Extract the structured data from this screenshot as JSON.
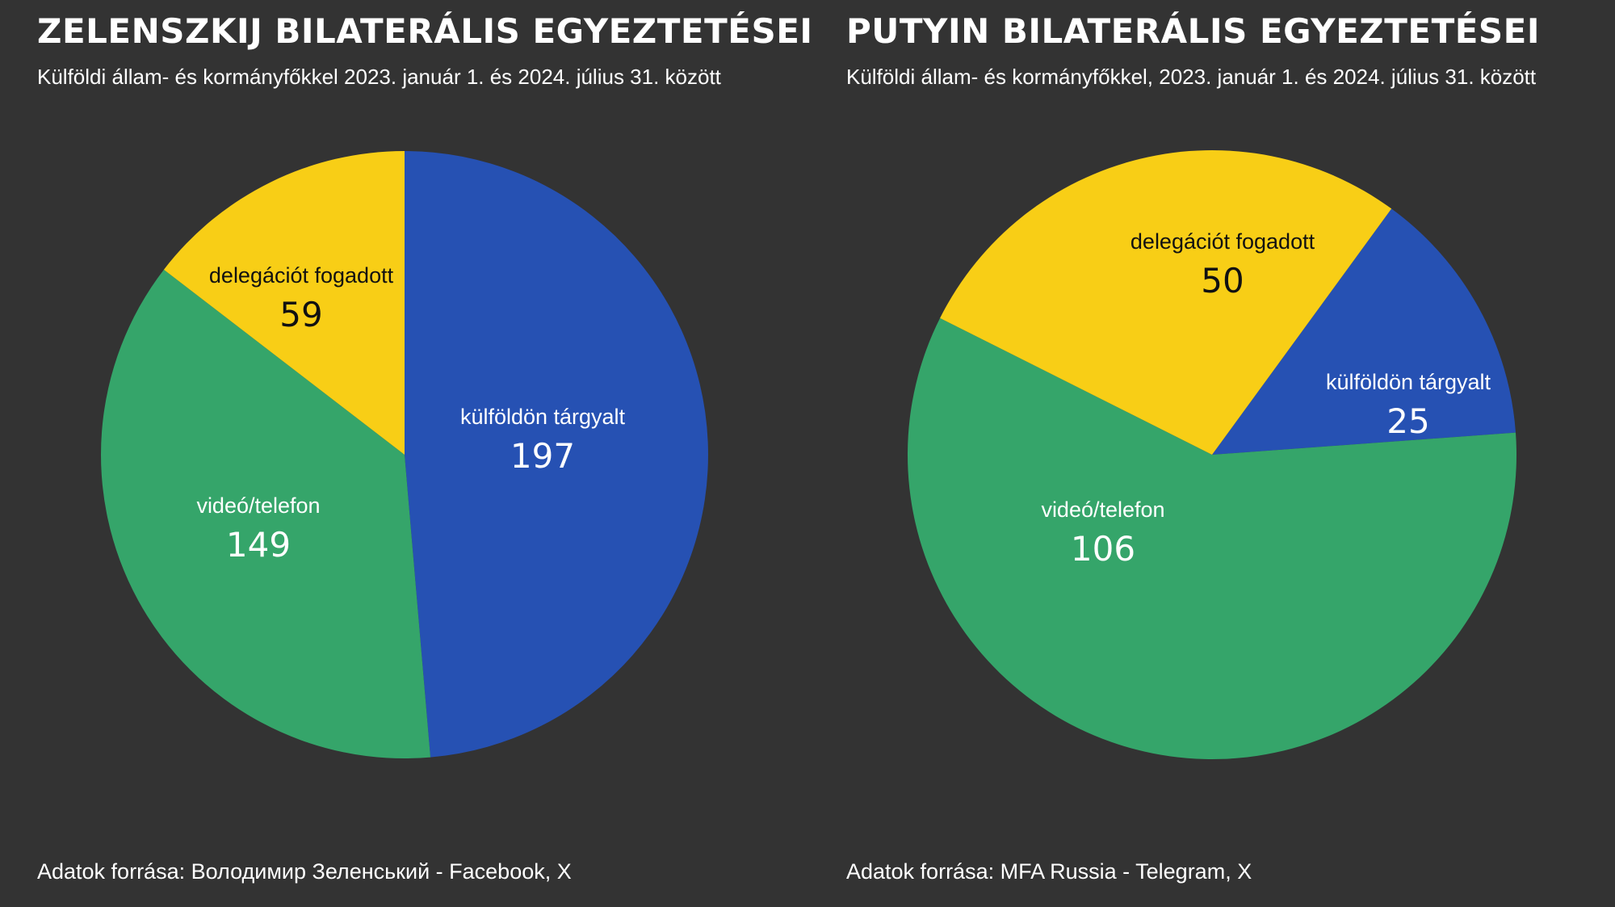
{
  "colors": {
    "background": "#333333",
    "blue": "#2651b3",
    "yellow": "#f8ce16",
    "green": "#35a56a",
    "text_light": "#ffffff",
    "text_dark": "#111111"
  },
  "left": {
    "title": "ZELENSZKIJ BILATERÁLIS EGYEZTETÉSEI",
    "subtitle": "Külföldi állam- és kormányfőkkel 2023. január 1. és 2024. július 31. között",
    "source": "Adatok forrása: Володимир Зеленський - Facebook, X"
  },
  "right": {
    "title": "PUTYIN BILATERÁLIS EGYEZTETÉSEI",
    "subtitle": "Külföldi állam- és kormányfőkkel, 2023. január 1. és 2024. július 31. között",
    "source": "Adatok forrása: MFA Russia - Telegram, X"
  },
  "chart_data": [
    {
      "type": "pie",
      "title": "ZELENSZKIJ BILATERÁLIS EGYEZTETÉSEI",
      "subtitle": "Külföldi állam- és kormányfőkkel 2023. január 1. és 2024. július 31. között",
      "slices": [
        {
          "label": "külföldön tárgyalt",
          "value": 197,
          "color": "#2651b3"
        },
        {
          "label": "videó/telefon",
          "value": 149,
          "color": "#35a56a"
        },
        {
          "label": "delegációt fogadott",
          "value": 59,
          "color": "#f8ce16"
        }
      ]
    },
    {
      "type": "pie",
      "title": "PUTYIN BILATERÁLIS EGYEZTETÉSEI",
      "subtitle": "Külföldi állam- és kormányfőkkel, 2023. január 1. és 2024. július 31. között",
      "slices": [
        {
          "label": "külföldön tárgyalt",
          "value": 25,
          "color": "#2651b3"
        },
        {
          "label": "videó/telefon",
          "value": 106,
          "color": "#35a56a"
        },
        {
          "label": "delegációt fogadott",
          "value": 50,
          "color": "#f8ce16"
        }
      ]
    }
  ]
}
